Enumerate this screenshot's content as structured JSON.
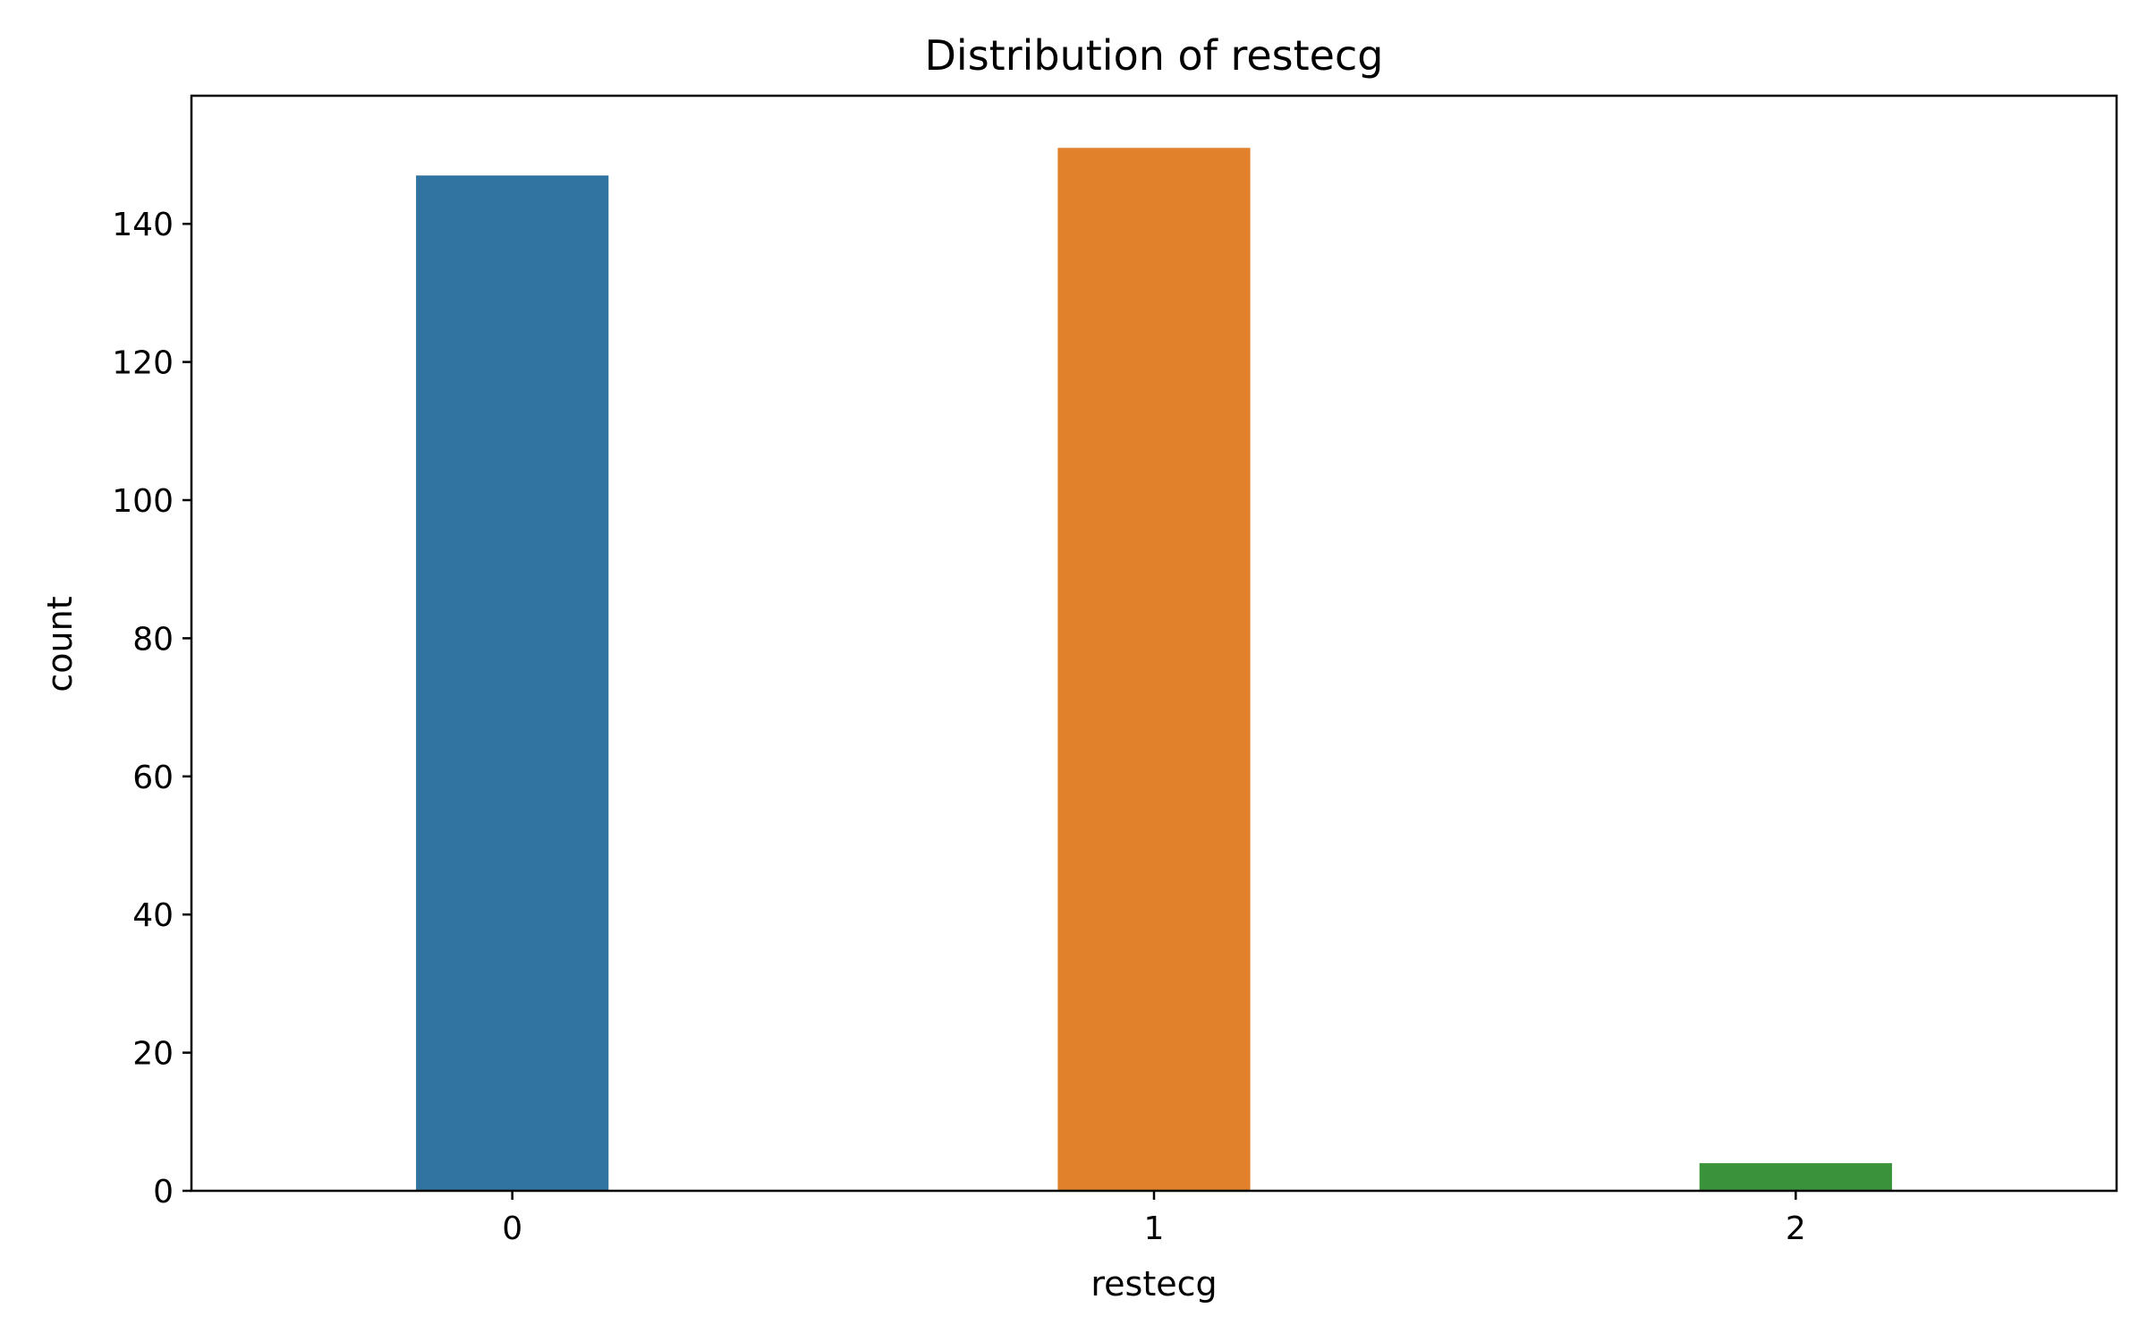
{
  "chart_data": {
    "type": "bar",
    "title": "Distribution of restecg",
    "xlabel": "restecg",
    "ylabel": "count",
    "categories": [
      "0",
      "1",
      "2"
    ],
    "values": [
      147,
      151,
      4
    ],
    "colors": [
      "#3274a1",
      "#e1812c",
      "#3a923a"
    ],
    "ylim": [
      0,
      158.55
    ],
    "yticks": [
      0,
      20,
      40,
      60,
      80,
      100,
      120,
      140
    ],
    "grid": false
  }
}
